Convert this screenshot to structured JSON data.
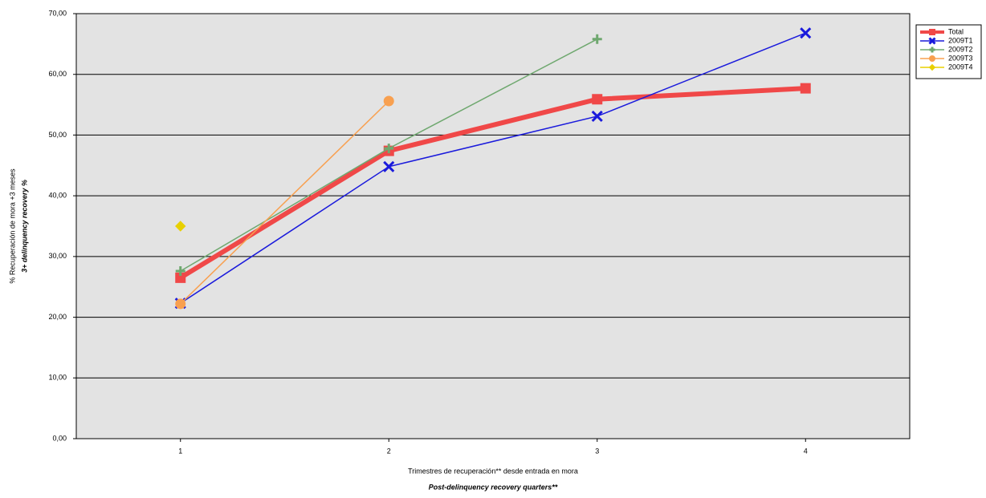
{
  "chart_data": {
    "type": "line",
    "y_label": "% Recuperación de mora +3 meses",
    "y_sublabel": "3+ delinquency recovery %",
    "x_label": "Trimestres de recuperación** desde entrada en mora",
    "x_sublabel": "Post-delinquency recovery quarters**",
    "categories": [
      "1",
      "2",
      "3",
      "4"
    ],
    "series": [
      {
        "name": "Total",
        "color": "#f04848",
        "marker": "square",
        "line_width": 6,
        "values": [
          26.5,
          47.4,
          55.9,
          57.7
        ]
      },
      {
        "name": "2009T1",
        "color": "#1a1adc",
        "marker": "x",
        "line_width": 1.5,
        "values": [
          22.3,
          44.8,
          53.1,
          66.8
        ]
      },
      {
        "name": "2009T2",
        "color": "#6fa86f",
        "marker": "plus",
        "line_width": 1.5,
        "values": [
          27.6,
          47.8,
          65.8,
          null
        ]
      },
      {
        "name": "2009T3",
        "color": "#f8a050",
        "marker": "circle",
        "line_width": 1.5,
        "values": [
          22.2,
          55.6,
          null,
          null
        ]
      },
      {
        "name": "2009T4",
        "color": "#e8d000",
        "marker": "diamond",
        "line_width": 1.5,
        "values": [
          35.0,
          null,
          null,
          null
        ]
      }
    ],
    "ylim": [
      0,
      70
    ],
    "yticks": [
      {
        "value": 0,
        "label": "0,00"
      },
      {
        "value": 10,
        "label": "10,00"
      },
      {
        "value": 20,
        "label": "20,00"
      },
      {
        "value": 30,
        "label": "30,00"
      },
      {
        "value": 40,
        "label": "40,00"
      },
      {
        "value": 50,
        "label": "50,00"
      },
      {
        "value": 60,
        "label": "60,00"
      },
      {
        "value": 70,
        "label": "70,00"
      }
    ],
    "grid": true,
    "background": "#e3e3e3",
    "legend": "top-right"
  }
}
